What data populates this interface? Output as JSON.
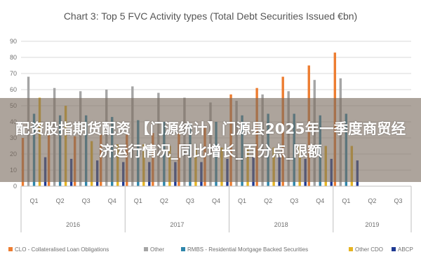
{
  "overlay_caption": "配资股指期货配资 【门源统计】门源县2025年一季度商贸经济运行情况_同比增长_百分点_限额",
  "chart_data": {
    "type": "bar",
    "title": "Chart 3: Top 5 FVC Activity types (Total Debt Securities Issued €bn)",
    "xlabel": "",
    "ylabel": "",
    "ylim": [
      0,
      90
    ],
    "yticks": [
      0,
      10,
      20,
      30,
      40,
      50,
      60,
      70,
      80,
      90
    ],
    "grid": true,
    "legend_position": "bottom",
    "categories": [
      "Q1",
      "Q2",
      "Q3",
      "Q4",
      "Q1",
      "Q2",
      "Q3",
      "Q4",
      "Q1",
      "Q2",
      "Q3",
      "Q4",
      "Q1",
      "Q2",
      "Q3"
    ],
    "year_groups": [
      {
        "label": "2016",
        "count": 4
      },
      {
        "label": "2017",
        "count": 4
      },
      {
        "label": "2018",
        "count": 4
      },
      {
        "label": "2019",
        "count": 3
      }
    ],
    "series": [
      {
        "name": "CLO - Collateralised Loan Obligations",
        "color": "#ed7d31",
        "values": [
          30,
          32,
          31,
          32,
          32,
          33,
          33,
          37,
          57,
          61,
          68,
          75,
          83,
          null,
          null
        ]
      },
      {
        "name": "Other",
        "color": "#a5a5a5",
        "values": [
          68,
          61,
          59,
          60,
          62,
          58,
          55,
          52,
          53,
          57,
          59,
          66,
          67,
          null,
          null
        ]
      },
      {
        "name": "RMBS - Residential Mortgage Backed Securities",
        "color": "#2e86ab",
        "values": [
          45,
          44,
          44,
          43,
          41,
          40,
          39,
          40,
          44,
          45,
          45,
          44,
          45,
          null,
          null
        ]
      },
      {
        "name": "Other CDO",
        "color": "#e6b422",
        "values": [
          55,
          50,
          28,
          26,
          26,
          25,
          24,
          24,
          24,
          24,
          25,
          25,
          25,
          null,
          null
        ]
      },
      {
        "name": "ABCP",
        "color": "#1f3a93",
        "values": [
          18,
          17,
          16,
          15,
          15,
          15,
          15,
          17,
          18,
          18,
          17,
          17,
          16,
          null,
          null
        ]
      }
    ]
  }
}
